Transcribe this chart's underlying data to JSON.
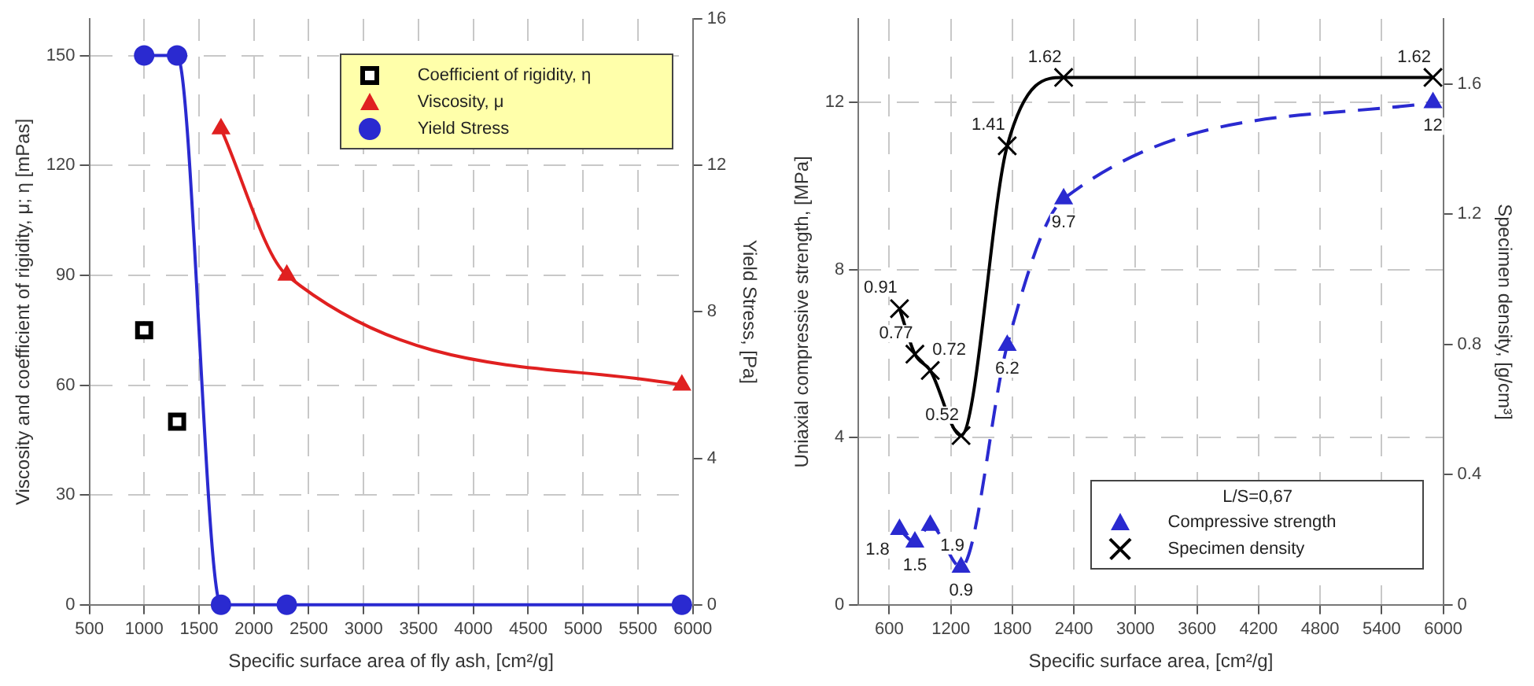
{
  "chart_data": [
    {
      "type": "scatter",
      "xlabel": "Specific surface area of fly ash, [cm²/g]",
      "ylabel": "Viscosity and coefficient of rigidity, μ; η [mPas]",
      "y2label": "Yield Stress, [Pa]",
      "xlim": [
        500,
        6000
      ],
      "xticks": [
        500,
        1000,
        1500,
        2000,
        2500,
        3000,
        3500,
        4000,
        4500,
        5000,
        5500,
        6000
      ],
      "ylim": [
        0,
        160
      ],
      "yticks": [
        0,
        30,
        60,
        90,
        120,
        150
      ],
      "y2lim": [
        0,
        16
      ],
      "y2ticks": [
        0,
        4,
        8,
        12,
        16
      ],
      "grid": true,
      "legend": "top right",
      "series": [
        {
          "name": "Coefficient of rigidity, η",
          "marker": "square",
          "color": "#000000",
          "x": [
            1000,
            1300
          ],
          "values": [
            75,
            50
          ]
        },
        {
          "name": "Viscosity, μ",
          "type": "line",
          "marker": "triangle",
          "color": "#e02020",
          "x": [
            1700,
            2300,
            5900
          ],
          "values": [
            130,
            90,
            60
          ]
        },
        {
          "name": "Yield Stress",
          "type": "line",
          "marker": "circle",
          "axis": "y2",
          "color": "#2a2ad0",
          "x": [
            1000,
            1300,
            1700,
            2300,
            5900
          ],
          "values": [
            15,
            15,
            0,
            0,
            0
          ]
        }
      ]
    },
    {
      "type": "line",
      "xlabel": "Specific surface area, [cm²/g]",
      "ylabel": "Uniaxial compressive strength, [MPa]",
      "y2label": "Specimen density, [g/cm³]",
      "xlim": [
        300,
        6000
      ],
      "xticks": [
        600,
        1200,
        1800,
        2400,
        3000,
        3600,
        4200,
        4800,
        5400,
        6000
      ],
      "ylim": [
        0,
        14
      ],
      "yticks": [
        0,
        4,
        8,
        12
      ],
      "y2lim": [
        0,
        1.8
      ],
      "y2ticks": [
        0,
        0.4,
        0.8,
        1.2,
        1.6
      ],
      "grid": true,
      "legend": "bottom right",
      "legend_title": "L/S=0,67",
      "data_labels": true,
      "series": [
        {
          "name": "Compressive strength",
          "marker": "triangle",
          "line_style": "dashed",
          "color": "#2a2ad0",
          "x": [
            700,
            850,
            1000,
            1300,
            1750,
            2300,
            5900
          ],
          "values": [
            1.8,
            1.5,
            1.9,
            0.9,
            6.2,
            9.7,
            12
          ]
        },
        {
          "name": "Specimen density",
          "marker": "cross",
          "line_style": "solid",
          "axis": "y2",
          "color": "#000000",
          "x": [
            700,
            850,
            1000,
            1300,
            1750,
            2300,
            5900
          ],
          "values": [
            0.91,
            0.77,
            0.72,
            0.52,
            1.41,
            1.62,
            1.62
          ]
        }
      ]
    }
  ]
}
